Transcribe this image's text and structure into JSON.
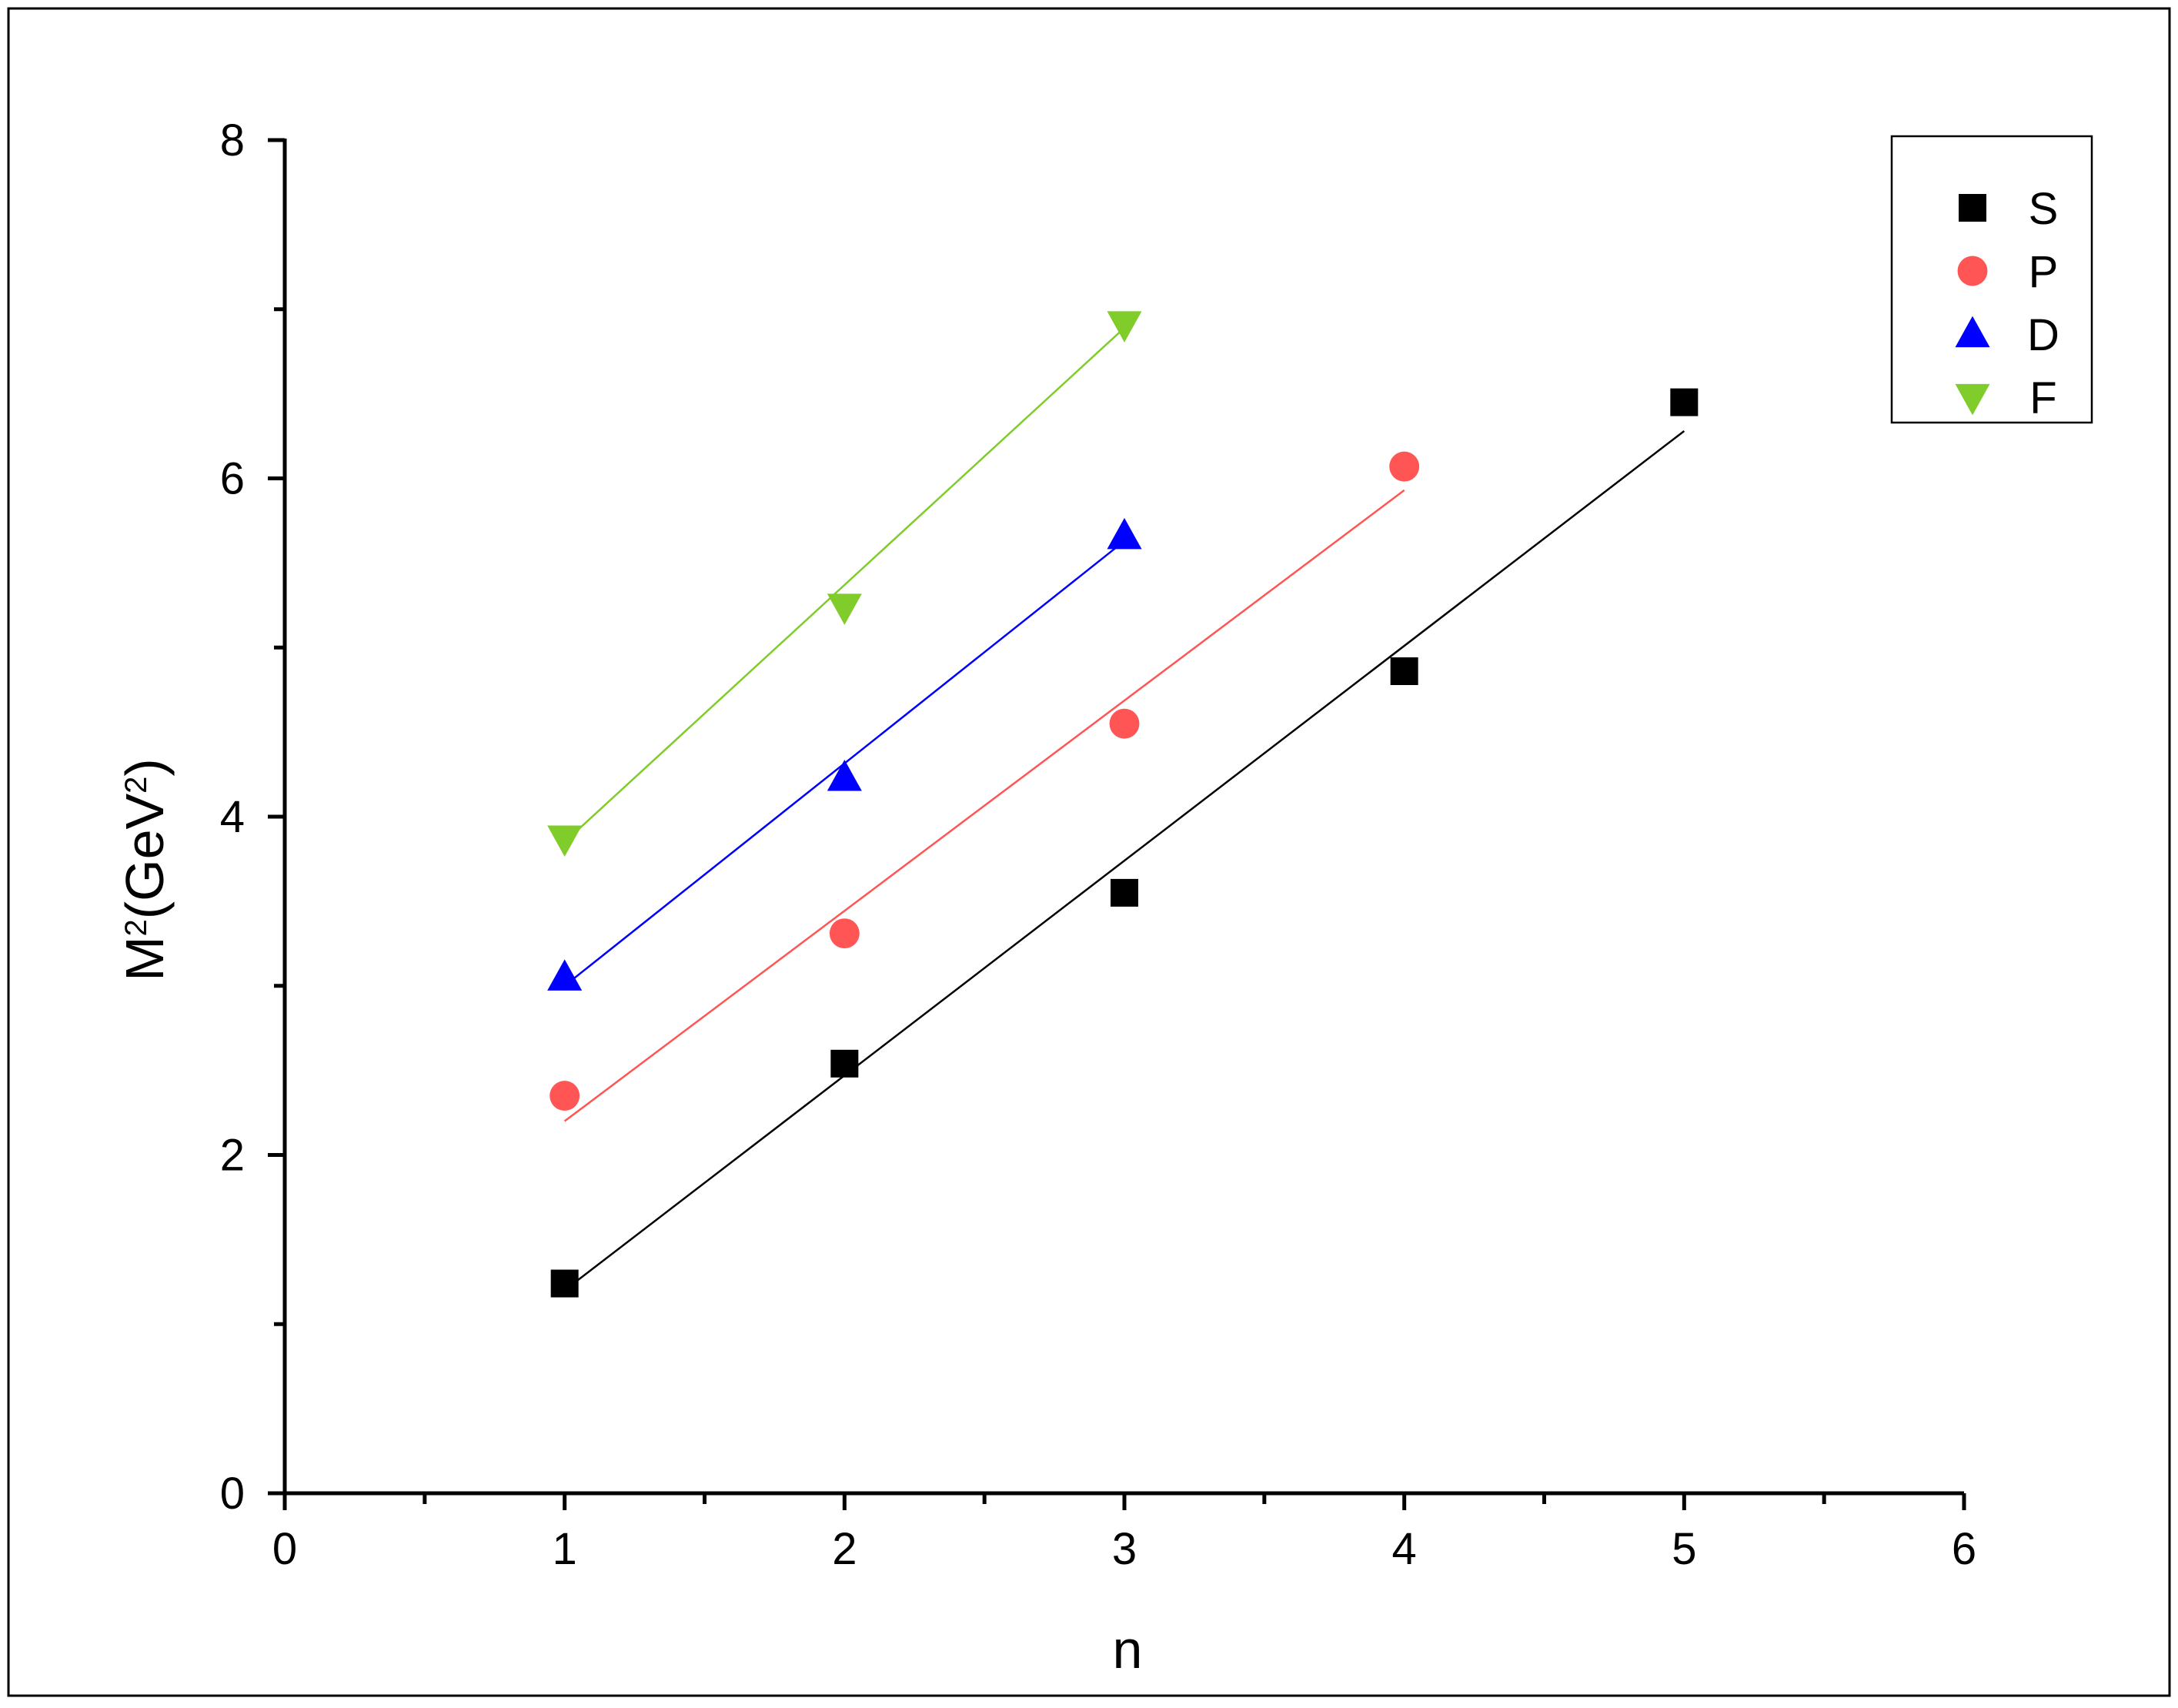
{
  "chart_data": {
    "type": "scatter",
    "xlabel": "n",
    "ylabel": {
      "parts": [
        {
          "text": "M",
          "sup": false
        },
        {
          "text": "2",
          "sup": true
        },
        {
          "text": "(GeV",
          "sup": false
        },
        {
          "text": "2",
          "sup": true
        },
        {
          "text": ")",
          "sup": false
        }
      ]
    },
    "xlim": [
      0,
      6
    ],
    "ylim": [
      0,
      8
    ],
    "xticks": [
      {
        "value": 0,
        "label": "0"
      },
      {
        "value": 1,
        "label": "1"
      },
      {
        "value": 2,
        "label": "2"
      },
      {
        "value": 3,
        "label": "3"
      },
      {
        "value": 4,
        "label": "4"
      },
      {
        "value": 5,
        "label": "5"
      },
      {
        "value": 6,
        "label": "6"
      }
    ],
    "yticks": [
      {
        "value": 0,
        "label": "0"
      },
      {
        "value": 2,
        "label": "2"
      },
      {
        "value": 4,
        "label": "4"
      },
      {
        "value": 6,
        "label": "6"
      },
      {
        "value": 8,
        "label": "8"
      }
    ],
    "x_minor_step": 0.5,
    "y_minor_step": 1,
    "grid": false,
    "legend_position": "top-right",
    "series": [
      {
        "name": "S",
        "marker": "square",
        "color": "#000000",
        "x": [
          1,
          2,
          3,
          4,
          5
        ],
        "y": [
          1.24,
          2.54,
          3.55,
          4.86,
          6.45
        ],
        "fit": {
          "x": [
            1,
            5
          ],
          "y": [
            1.2,
            6.28
          ]
        }
      },
      {
        "name": "P",
        "marker": "circle",
        "color": "#ff5555",
        "x": [
          1,
          2,
          3,
          4
        ],
        "y": [
          2.35,
          3.31,
          4.55,
          6.07
        ],
        "fit": {
          "x": [
            1,
            4
          ],
          "y": [
            2.2,
            5.93
          ]
        }
      },
      {
        "name": "D",
        "marker": "triangle-up",
        "color": "#0000ff",
        "x": [
          1,
          2,
          3
        ],
        "y": [
          3.05,
          4.23,
          5.66
        ],
        "fit": {
          "x": [
            1,
            3
          ],
          "y": [
            3.0,
            5.63
          ]
        }
      },
      {
        "name": "F",
        "marker": "triangle-down",
        "color": "#7fcc2a",
        "x": [
          1,
          2,
          3
        ],
        "y": [
          3.87,
          5.24,
          6.91
        ],
        "fit": {
          "x": [
            1,
            3
          ],
          "y": [
            3.85,
            6.89
          ]
        }
      }
    ]
  }
}
